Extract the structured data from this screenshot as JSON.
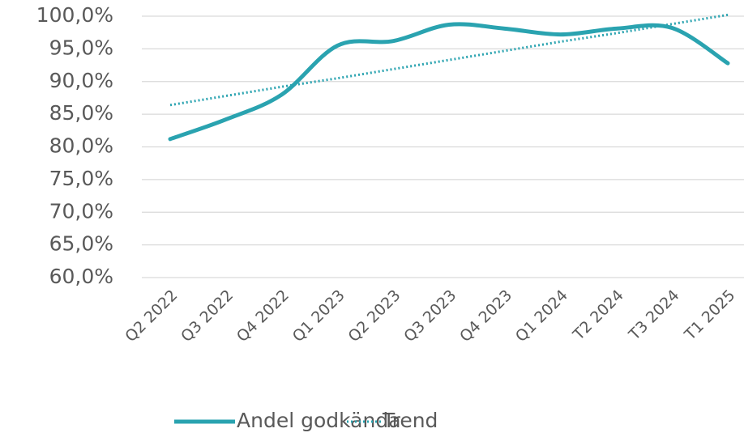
{
  "chart_data": {
    "type": "line",
    "smooth": true,
    "categories": [
      "Q2 2022",
      "Q3 2022",
      "Q4 2022",
      "Q1 2023",
      "Q2 2023",
      "Q3 2023",
      "Q4 2023",
      "Q1 2024",
      "T2 2024",
      "T3 2024",
      "T1 2025"
    ],
    "series": [
      {
        "name": "Andel godkända",
        "color": "#2aa3b0",
        "style": "solid",
        "values": [
          81.2,
          84.2,
          88.0,
          95.5,
          96.2,
          98.7,
          98.1,
          97.2,
          98.1,
          98.2,
          92.8
        ]
      },
      {
        "name": "Trend",
        "color": "#2aa3b0",
        "style": "dotted",
        "values": [
          86.4,
          87.8,
          89.2,
          90.5,
          91.9,
          93.3,
          94.7,
          96.1,
          97.4,
          98.8,
          100.2
        ]
      }
    ],
    "ylim": [
      60,
      100
    ],
    "yticks": [
      {
        "value": 60,
        "label": "60,0%"
      },
      {
        "value": 65,
        "label": "65,0%"
      },
      {
        "value": 70,
        "label": "70,0%"
      },
      {
        "value": 75,
        "label": "75,0%"
      },
      {
        "value": 80,
        "label": "80,0%"
      },
      {
        "value": 85,
        "label": "85,0%"
      },
      {
        "value": 90,
        "label": "90,0%"
      },
      {
        "value": 95,
        "label": "95,0%"
      },
      {
        "value": 100,
        "label": "100,0%"
      }
    ],
    "grid": true,
    "legend": "bottom"
  }
}
